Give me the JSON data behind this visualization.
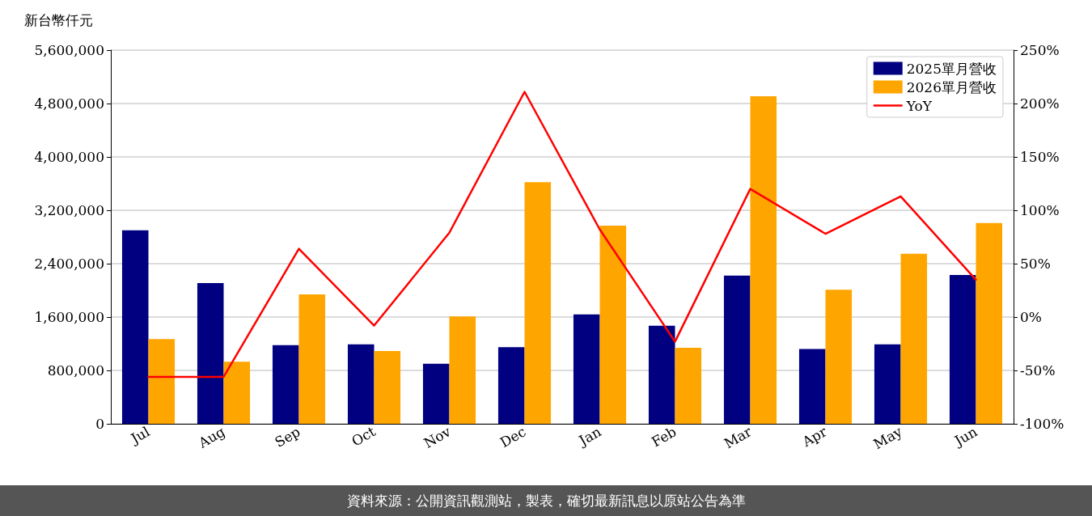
{
  "chart_data": {
    "type": "bar",
    "ylabel": "新台幣仟元",
    "categories": [
      "Jul",
      "Aug",
      "Sep",
      "Oct",
      "Nov",
      "Dec",
      "Jan",
      "Feb",
      "Mar",
      "Apr",
      "May",
      "Jun"
    ],
    "series": [
      {
        "name": "2025單月營收",
        "color": "#000080",
        "values": [
          2900000,
          2110000,
          1180000,
          1190000,
          900000,
          1150000,
          1640000,
          1470000,
          2220000,
          1120000,
          1190000,
          2230000
        ]
      },
      {
        "name": "2026單月營收",
        "color": "#ffa500",
        "values": [
          1270000,
          930000,
          1940000,
          1090000,
          1610000,
          3620000,
          2970000,
          1140000,
          4910000,
          2010000,
          2550000,
          3010000
        ]
      },
      {
        "name": "YoY",
        "type": "line",
        "axis": "y2",
        "color": "#ff0000",
        "marker": "none",
        "line_style": "solid",
        "values": [
          -56,
          -56,
          64,
          -8,
          79,
          211,
          82,
          -23,
          120,
          78,
          113,
          35
        ]
      }
    ],
    "ylim": [
      0,
      5600000
    ],
    "yticks": [
      {
        "value": 0,
        "label": "0"
      },
      {
        "value": 800000,
        "label": "800,000"
      },
      {
        "value": 1600000,
        "label": "1,600,000"
      },
      {
        "value": 2400000,
        "label": "2,400,000"
      },
      {
        "value": 3200000,
        "label": "3,200,000"
      },
      {
        "value": 4000000,
        "label": "4,000,000"
      },
      {
        "value": 4800000,
        "label": "4,800,000"
      },
      {
        "value": 5600000,
        "label": "5,600,000"
      }
    ],
    "y2lim": [
      -100,
      250
    ],
    "y2ticks": [
      {
        "value": -100,
        "label": "-100%"
      },
      {
        "value": -50,
        "label": "-50%"
      },
      {
        "value": 0,
        "label": "0%"
      },
      {
        "value": 50,
        "label": "50%"
      },
      {
        "value": 100,
        "label": "100%"
      },
      {
        "value": 150,
        "label": "150%"
      },
      {
        "value": 200,
        "label": "200%"
      },
      {
        "value": 250,
        "label": "250%"
      }
    ],
    "grid": "y",
    "legend": "top right",
    "annotations": [
      "資料來源：公開資訊觀測站，製表，確切最新訊息以原站公告為準"
    ]
  }
}
